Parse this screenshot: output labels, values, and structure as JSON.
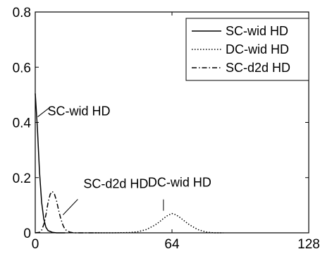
{
  "chart_data": {
    "type": "line",
    "title": "",
    "xlabel": "",
    "ylabel": "",
    "xlim": [
      0,
      128
    ],
    "ylim": [
      0,
      0.8
    ],
    "grid": false,
    "legend_position": "top-right",
    "x_ticks": [
      0,
      64,
      128
    ],
    "y_ticks": [
      0,
      0.2,
      0.4,
      0.6,
      0.8
    ],
    "x_tick_labels": [
      "0",
      "64",
      "128"
    ],
    "y_tick_labels": [
      "0",
      "0.2",
      "0.4",
      "0.6",
      "0.8"
    ],
    "series": [
      {
        "name": "SC-wid HD",
        "line_style": "solid",
        "color": "#000000",
        "x": [
          0,
          1,
          2,
          3,
          4,
          5,
          6,
          8,
          10,
          14
        ],
        "y": [
          0.505,
          0.38,
          0.22,
          0.11,
          0.05,
          0.02,
          0.008,
          0.002,
          0.0,
          0.0
        ]
      },
      {
        "name": "DC-wid HD",
        "line_style": "dotted",
        "color": "#000000",
        "x": [
          28,
          36,
          44,
          48,
          52,
          56,
          58,
          60,
          62,
          64,
          66,
          68,
          70,
          72,
          76,
          80,
          84,
          88
        ],
        "y": [
          0.0,
          0.0,
          0.001,
          0.004,
          0.012,
          0.028,
          0.039,
          0.052,
          0.063,
          0.07,
          0.065,
          0.054,
          0.042,
          0.03,
          0.012,
          0.003,
          0.0,
          0.0
        ]
      },
      {
        "name": "SC-d2d HD",
        "line_style": "dashdot",
        "color": "#000000",
        "x": [
          0,
          2,
          3,
          4,
          5,
          6,
          7,
          8,
          9,
          10,
          11,
          12,
          13,
          14,
          16,
          18,
          22,
          26,
          30
        ],
        "y": [
          0.0,
          0.002,
          0.01,
          0.03,
          0.065,
          0.11,
          0.14,
          0.15,
          0.14,
          0.115,
          0.08,
          0.05,
          0.027,
          0.012,
          0.003,
          0.0,
          0.0,
          0.0,
          0.0
        ]
      }
    ],
    "annotations": [
      {
        "text": "SC-wid HD",
        "x": 0.5,
        "y": 0.405
      },
      {
        "text": "SC-d2d HD",
        "x": 12,
        "y": 0.06
      },
      {
        "text": "DC-wid HD",
        "x": 60,
        "y": 0.075
      }
    ]
  }
}
